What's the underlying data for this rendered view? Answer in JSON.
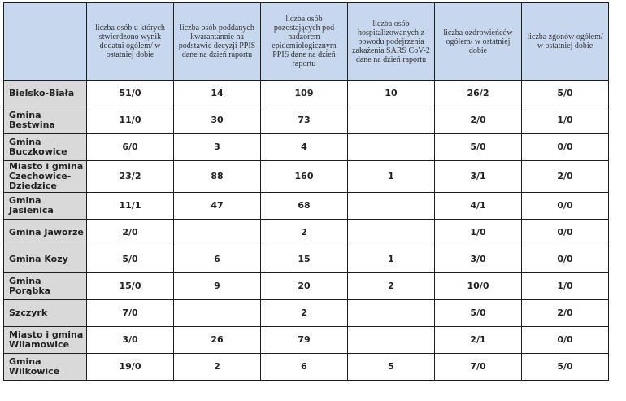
{
  "headers": [
    "",
    "liczba osób u których stwierdzono wynik dodatni ogółem/ w ostatniej dobie",
    "liczba osób poddanych kwarantannie na podstawie decyzji PPIS dane na dzień raportu",
    "liczba osób pozostających pod nadzorem epidemiologicznym PPIS dane na dzień raportu",
    "liczba osób hospitalizowanych z powodu podejrzenia zakażenia SARS CoV-2 dane na dzień raportu",
    "liczba ozdrowieńców ogółem/ w ostatniej dobie",
    "liczba zgonów ogółem/ w ostatniej dobie"
  ],
  "rows": [
    [
      "Bielsko-Biała",
      "51/0",
      "14",
      "109",
      "10",
      "26/2",
      "5/0"
    ],
    [
      "Gmina Bestwina",
      "11/0",
      "30",
      "73",
      "",
      "2/0",
      "1/0"
    ],
    [
      "Gmina Buczkowice",
      "6/0",
      "3",
      "4",
      "",
      "5/0",
      "0/0"
    ],
    [
      "Miasto i gmina Czechowice-Dziedzice",
      "23/2",
      "88",
      "160",
      "1",
      "3/1",
      "2/0"
    ],
    [
      "Gmina Jasienica",
      "11/1",
      "47",
      "68",
      "",
      "4/1",
      "0/0"
    ],
    [
      "Gmina Jaworze",
      "2/0",
      "",
      "2",
      "",
      "1/0",
      "0/0"
    ],
    [
      "Gmina Kozy",
      "5/0",
      "6",
      "15",
      "1",
      "3/0",
      "0/0"
    ],
    [
      "Gmina Porąbka",
      "15/0",
      "9",
      "20",
      "2",
      "10/0",
      "1/0"
    ],
    [
      "Szczyrk",
      "7/0",
      "",
      "2",
      "",
      "5/0",
      "2/0"
    ],
    [
      "Miasto i gmina Wilamowice",
      "3/0",
      "26",
      "79",
      "",
      "2/1",
      "0/0"
    ],
    [
      "Gmina Wilkowice",
      "19/0",
      "2",
      "6",
      "5",
      "7/0",
      "5/0"
    ]
  ],
  "colors": {
    "header_bg": "#c6d7ee",
    "name_bg": "#d9d9d9",
    "border": "#1f1f1f"
  }
}
